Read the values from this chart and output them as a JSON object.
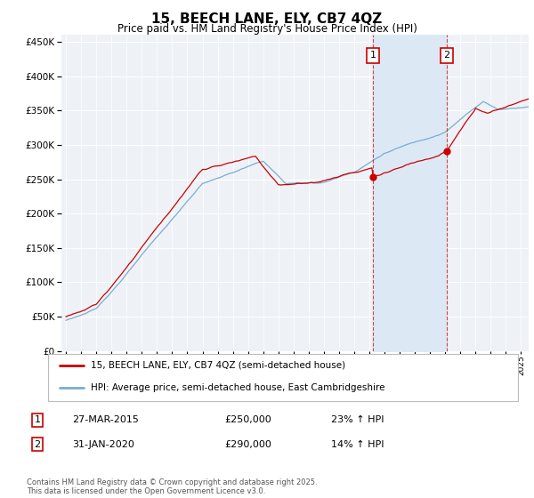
{
  "title": "15, BEECH LANE, ELY, CB7 4QZ",
  "subtitle": "Price paid vs. HM Land Registry's House Price Index (HPI)",
  "legend_line1": "15, BEECH LANE, ELY, CB7 4QZ (semi-detached house)",
  "legend_line2": "HPI: Average price, semi-detached house, East Cambridgeshire",
  "sale1_date": "27-MAR-2015",
  "sale1_price": "£250,000",
  "sale1_hpi": "23% ↑ HPI",
  "sale2_date": "31-JAN-2020",
  "sale2_price": "£290,000",
  "sale2_hpi": "14% ↑ HPI",
  "sale1_year": 2015.23,
  "sale2_year": 2020.08,
  "sale1_value": 250000,
  "sale2_value": 290000,
  "red_color": "#cc0000",
  "blue_color": "#7aadcf",
  "shade_color": "#dce9f5",
  "background_color": "#eef2f7",
  "grid_color": "#ffffff",
  "footer": "Contains HM Land Registry data © Crown copyright and database right 2025.\nThis data is licensed under the Open Government Licence v3.0.",
  "ylim": [
    0,
    460000
  ],
  "xlim_start": 1994.7,
  "xlim_end": 2025.5
}
